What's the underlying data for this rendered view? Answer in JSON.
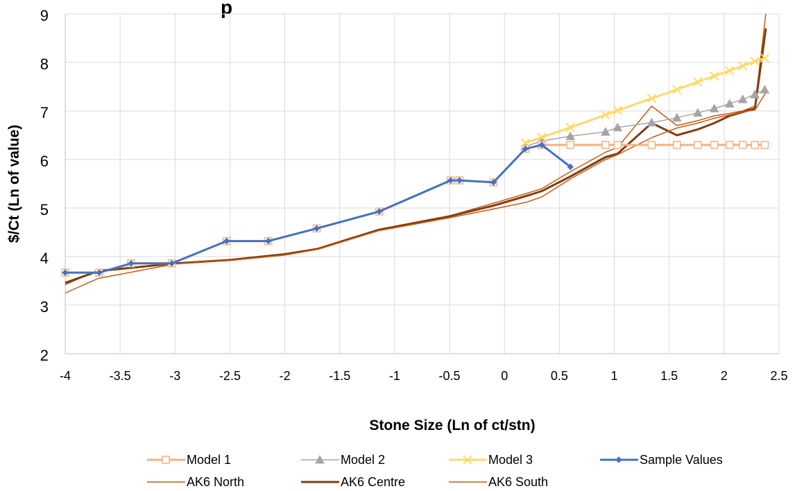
{
  "chart_data": {
    "type": "line",
    "title_fragment": "p",
    "xlabel": "Stone Size (Ln of ct/stn)",
    "ylabel": "$/Ct (Ln of value)",
    "xlim": [
      -4,
      2.5
    ],
    "ylim": [
      2,
      9
    ],
    "xticks": [
      -4,
      -3.5,
      -3,
      -2.5,
      -2,
      -1.5,
      -1,
      -0.5,
      0,
      0.5,
      1,
      1.5,
      2,
      2.5
    ],
    "xtick_labels": [
      "-4",
      "-3.5",
      "-3",
      "-2.5",
      "-2",
      "-1.5",
      "-1",
      "-0.5",
      "0",
      "0.5",
      "1",
      "1.5",
      "2",
      "2.5"
    ],
    "yticks": [
      2,
      3,
      4,
      5,
      6,
      7,
      8,
      9
    ],
    "ytick_labels": [
      "2",
      "3",
      "4",
      "5",
      "6",
      "7",
      "8",
      "9"
    ],
    "grid": true,
    "legend_position": "bottom",
    "series": [
      {
        "name": "Model 1",
        "color": "#f4b183",
        "marker": "square-open",
        "stroke_width": 3,
        "points": [
          [
            -4.0,
            3.67
          ],
          [
            -3.69,
            3.67
          ],
          [
            -3.4,
            3.86
          ],
          [
            -3.03,
            3.86
          ],
          [
            -2.53,
            4.32
          ],
          [
            -2.15,
            4.32
          ],
          [
            -1.71,
            4.58
          ],
          [
            -1.14,
            4.93
          ],
          [
            -0.49,
            5.57
          ],
          [
            -0.41,
            5.57
          ],
          [
            -0.1,
            5.53
          ],
          [
            0.19,
            6.22
          ],
          [
            0.34,
            6.3
          ],
          [
            0.6,
            6.3
          ],
          [
            0.92,
            6.3
          ],
          [
            1.03,
            6.3
          ],
          [
            1.34,
            6.3
          ],
          [
            1.57,
            6.3
          ],
          [
            1.76,
            6.3
          ],
          [
            1.91,
            6.3
          ],
          [
            2.05,
            6.3
          ],
          [
            2.17,
            6.3
          ],
          [
            2.28,
            6.3
          ],
          [
            2.37,
            6.3
          ]
        ]
      },
      {
        "name": "Model 2",
        "color": "#a5a5a5",
        "marker": "triangle",
        "stroke_width": 1.5,
        "points": [
          [
            0.19,
            6.27
          ],
          [
            0.34,
            6.38
          ],
          [
            0.6,
            6.48
          ],
          [
            0.92,
            6.57
          ],
          [
            1.03,
            6.66
          ],
          [
            1.34,
            6.76
          ],
          [
            1.57,
            6.86
          ],
          [
            1.76,
            6.96
          ],
          [
            1.91,
            7.05
          ],
          [
            2.05,
            7.15
          ],
          [
            2.17,
            7.24
          ],
          [
            2.28,
            7.34
          ],
          [
            2.37,
            7.44
          ]
        ]
      },
      {
        "name": "Model 3",
        "color": "#ffd966",
        "marker": "x",
        "stroke_width": 3,
        "points": [
          [
            0.19,
            6.34
          ],
          [
            0.34,
            6.46
          ],
          [
            0.6,
            6.66
          ],
          [
            0.92,
            6.92
          ],
          [
            1.03,
            7.01
          ],
          [
            1.34,
            7.26
          ],
          [
            1.57,
            7.44
          ],
          [
            1.76,
            7.6
          ],
          [
            1.91,
            7.72
          ],
          [
            2.05,
            7.83
          ],
          [
            2.17,
            7.93
          ],
          [
            2.28,
            8.02
          ],
          [
            2.37,
            8.09
          ]
        ]
      },
      {
        "name": "Sample Values",
        "color": "#4472c4",
        "marker": "diamond",
        "stroke_width": 3,
        "points": [
          [
            -4.0,
            3.67
          ],
          [
            -3.69,
            3.67
          ],
          [
            -3.4,
            3.86
          ],
          [
            -3.03,
            3.86
          ],
          [
            -2.53,
            4.32
          ],
          [
            -2.15,
            4.32
          ],
          [
            -1.71,
            4.58
          ],
          [
            -1.14,
            4.93
          ],
          [
            -0.49,
            5.57
          ],
          [
            -0.41,
            5.57
          ],
          [
            -0.1,
            5.53
          ],
          [
            0.19,
            6.22
          ],
          [
            0.34,
            6.3
          ],
          [
            0.6,
            5.85
          ]
        ]
      },
      {
        "name": "AK6 North",
        "color": "#c55a11",
        "marker": "none",
        "stroke_width": 1.5,
        "points": [
          [
            -4.0,
            3.42
          ],
          [
            -3.7,
            3.72
          ],
          [
            -3.0,
            3.86
          ],
          [
            -2.5,
            3.93
          ],
          [
            -2.0,
            4.05
          ],
          [
            -1.7,
            4.16
          ],
          [
            -1.15,
            4.55
          ],
          [
            -0.5,
            4.84
          ],
          [
            -0.1,
            5.1
          ],
          [
            0.2,
            5.3
          ],
          [
            0.34,
            5.4
          ],
          [
            0.6,
            5.75
          ],
          [
            0.92,
            6.15
          ],
          [
            1.03,
            6.25
          ],
          [
            1.34,
            7.1
          ],
          [
            1.57,
            6.7
          ],
          [
            1.76,
            6.8
          ],
          [
            1.91,
            6.9
          ],
          [
            2.05,
            6.95
          ],
          [
            2.17,
            7.0
          ],
          [
            2.28,
            7.1
          ],
          [
            2.38,
            9.0
          ]
        ]
      },
      {
        "name": "AK6 Centre",
        "color": "#843c0c",
        "marker": "none",
        "stroke_width": 3,
        "points": [
          [
            -4.0,
            3.46
          ],
          [
            -3.7,
            3.7
          ],
          [
            -3.0,
            3.86
          ],
          [
            -2.5,
            3.93
          ],
          [
            -2.0,
            4.05
          ],
          [
            -1.7,
            4.16
          ],
          [
            -1.15,
            4.55
          ],
          [
            -0.5,
            4.83
          ],
          [
            -0.1,
            5.05
          ],
          [
            0.2,
            5.25
          ],
          [
            0.34,
            5.35
          ],
          [
            0.6,
            5.65
          ],
          [
            0.92,
            6.05
          ],
          [
            1.03,
            6.12
          ],
          [
            1.34,
            6.75
          ],
          [
            1.57,
            6.5
          ],
          [
            1.76,
            6.62
          ],
          [
            1.91,
            6.75
          ],
          [
            2.05,
            6.9
          ],
          [
            2.17,
            6.98
          ],
          [
            2.28,
            7.05
          ],
          [
            2.38,
            8.7
          ]
        ]
      },
      {
        "name": "AK6 South",
        "color": "#c55a11",
        "marker": "none",
        "stroke_width": 1.5,
        "points": [
          [
            -4.0,
            3.25
          ],
          [
            -3.7,
            3.55
          ],
          [
            -3.0,
            3.85
          ],
          [
            -2.5,
            3.92
          ],
          [
            -2.0,
            4.03
          ],
          [
            -1.7,
            4.15
          ],
          [
            -1.15,
            4.53
          ],
          [
            -0.5,
            4.8
          ],
          [
            -0.1,
            4.98
          ],
          [
            0.2,
            5.12
          ],
          [
            0.34,
            5.23
          ],
          [
            0.6,
            5.6
          ],
          [
            0.92,
            6.0
          ],
          [
            1.03,
            6.1
          ],
          [
            1.34,
            6.45
          ],
          [
            1.57,
            6.65
          ],
          [
            1.76,
            6.75
          ],
          [
            1.91,
            6.85
          ],
          [
            2.05,
            6.92
          ],
          [
            2.17,
            6.98
          ],
          [
            2.28,
            7.02
          ],
          [
            2.38,
            7.38
          ]
        ]
      }
    ]
  }
}
